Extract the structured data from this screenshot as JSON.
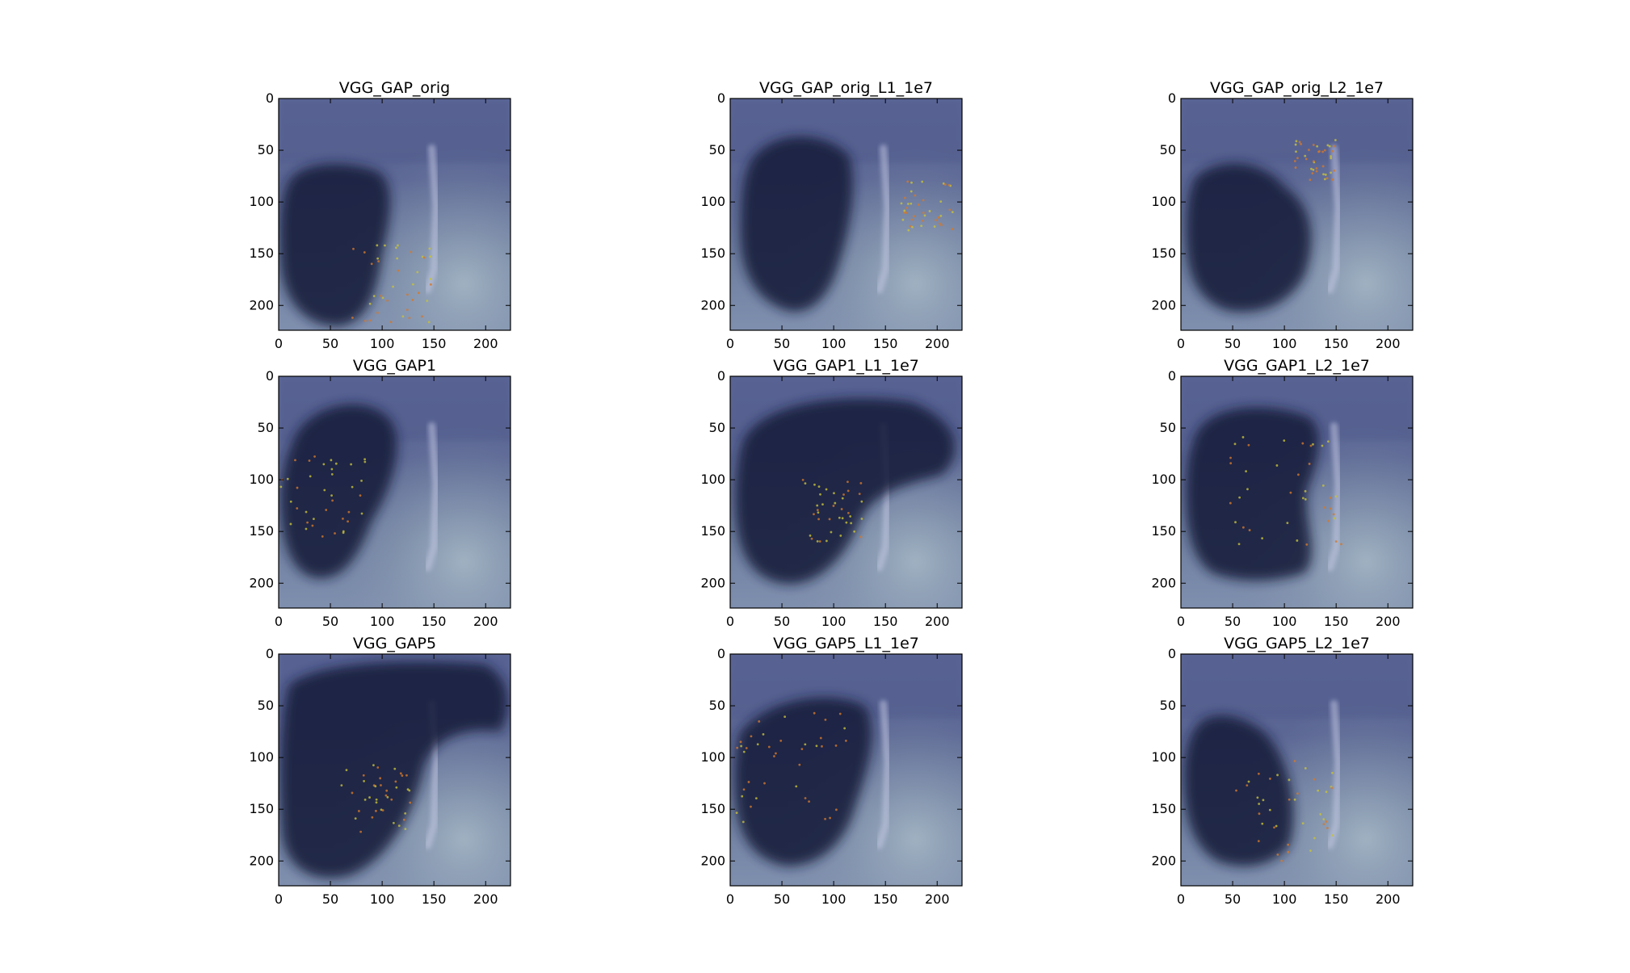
{
  "figure": {
    "layout": {
      "rows": 3,
      "cols": 3
    }
  },
  "chart_data": [
    {
      "type": "image",
      "title": "VGG_GAP_orig",
      "xlim": [
        0,
        224
      ],
      "ylim": [
        224,
        0
      ],
      "xticks": [
        0,
        50,
        100,
        150,
        200
      ],
      "yticks": [
        0,
        50,
        100,
        150,
        200
      ],
      "heatmap_colors": {
        "cold": "#141c3a",
        "mid": "#4c5a8c",
        "wash": "#6f78a8",
        "warm_spots": "#d4782a"
      }
    },
    {
      "type": "image",
      "title": "VGG_GAP_orig_L1_1e7",
      "xlim": [
        0,
        224
      ],
      "ylim": [
        224,
        0
      ],
      "xticks": [
        0,
        50,
        100,
        150,
        200
      ],
      "yticks": [
        0,
        50,
        100,
        150,
        200
      ]
    },
    {
      "type": "image",
      "title": "VGG_GAP_orig_L2_1e7",
      "xlim": [
        0,
        224
      ],
      "ylim": [
        224,
        0
      ],
      "xticks": [
        0,
        50,
        100,
        150,
        200
      ],
      "yticks": [
        0,
        50,
        100,
        150,
        200
      ]
    },
    {
      "type": "image",
      "title": "VGG_GAP1",
      "xlim": [
        0,
        224
      ],
      "ylim": [
        224,
        0
      ],
      "xticks": [
        0,
        50,
        100,
        150,
        200
      ],
      "yticks": [
        0,
        50,
        100,
        150,
        200
      ]
    },
    {
      "type": "image",
      "title": "VGG_GAP1_L1_1e7",
      "xlim": [
        0,
        224
      ],
      "ylim": [
        224,
        0
      ],
      "xticks": [
        0,
        50,
        100,
        150,
        200
      ],
      "yticks": [
        0,
        50,
        100,
        150,
        200
      ]
    },
    {
      "type": "image",
      "title": "VGG_GAP1_L2_1e7",
      "xlim": [
        0,
        224
      ],
      "ylim": [
        224,
        0
      ],
      "xticks": [
        0,
        50,
        100,
        150,
        200
      ],
      "yticks": [
        0,
        50,
        100,
        150,
        200
      ]
    },
    {
      "type": "image",
      "title": "VGG_GAP5",
      "xlim": [
        0,
        224
      ],
      "ylim": [
        224,
        0
      ],
      "xticks": [
        0,
        50,
        100,
        150,
        200
      ],
      "yticks": [
        0,
        50,
        100,
        150,
        200
      ]
    },
    {
      "type": "image",
      "title": "VGG_GAP5_L1_1e7",
      "xlim": [
        0,
        224
      ],
      "ylim": [
        224,
        0
      ],
      "xticks": [
        0,
        50,
        100,
        150,
        200
      ],
      "yticks": [
        0,
        50,
        100,
        150,
        200
      ]
    },
    {
      "type": "image",
      "title": "VGG_GAP5_L2_1e7",
      "xlim": [
        0,
        224
      ],
      "ylim": [
        224,
        0
      ],
      "xticks": [
        0,
        50,
        100,
        150,
        200
      ],
      "yticks": [
        0,
        50,
        100,
        150,
        200
      ]
    }
  ]
}
